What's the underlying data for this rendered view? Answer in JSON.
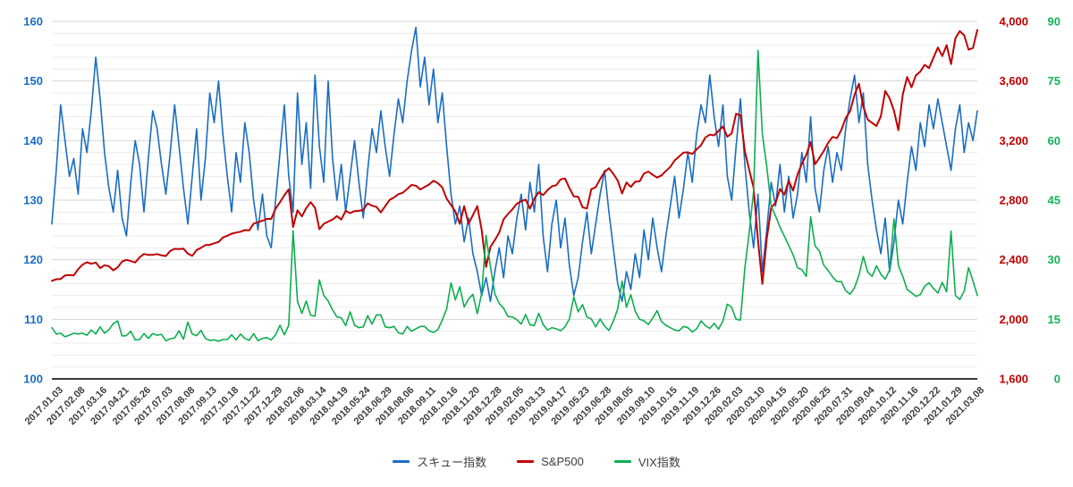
{
  "chart_data": {
    "type": "line",
    "title": "",
    "grid": true,
    "legend_position": "bottom",
    "x_labels": [
      "2017.01.03",
      "2017.02.08",
      "2017.03.16",
      "2017.04.21",
      "2017.05.26",
      "2017.07.03",
      "2017.08.08",
      "2017.09.13",
      "2017.10.18",
      "2017.11.22",
      "2017.12.29",
      "2018.02.06",
      "2018.03.14",
      "2018.04.19",
      "2018.05.24",
      "2018.06.29",
      "2018.08.06",
      "2018.09.11",
      "2018.10.16",
      "2018.11.20",
      "2018.12.28",
      "2019.02.05",
      "2019.03.13",
      "2019.04.17",
      "2019.05.23",
      "2019.06.28",
      "2019.08.05",
      "2019.09.10",
      "2019.10.15",
      "2019.11.19",
      "2019.12.26",
      "2020.02.03",
      "2020.03.10",
      "2020.04.15",
      "2020.05.20",
      "2020.06.25",
      "2020.07.31",
      "2020.09.04",
      "2020.10.12",
      "2020.11.16",
      "2020.12.22",
      "2021.01.29",
      "2021.03.08"
    ],
    "tick_every_samples": 5,
    "axes": {
      "left": {
        "min": 100,
        "max": 160,
        "step": 10,
        "minor_step": 2,
        "color": "#1a6dc2"
      },
      "right_sp500": {
        "min": 1600,
        "max": 4000,
        "step": 400,
        "color": "#c00000",
        "format": "comma"
      },
      "right_vix": {
        "min": 0,
        "max": 90,
        "step": 15,
        "color": "#12b35a"
      }
    },
    "series": [
      {
        "name": "スキュー指数",
        "axis": "left",
        "color": "#1a6dc2",
        "values": [
          126,
          135,
          146,
          140,
          134,
          137,
          131,
          142,
          138,
          145,
          154,
          147,
          138,
          132,
          128,
          135,
          127,
          124,
          133,
          140,
          136,
          128,
          137,
          145,
          142,
          136,
          131,
          138,
          146,
          139,
          132,
          126,
          134,
          142,
          130,
          137,
          148,
          143,
          150,
          141,
          134,
          128,
          138,
          133,
          143,
          138,
          130,
          125,
          131,
          124,
          122,
          130,
          138,
          146,
          134,
          128,
          148,
          136,
          143,
          132,
          151,
          139,
          133,
          150,
          137,
          130,
          136,
          128,
          134,
          140,
          133,
          127,
          135,
          142,
          138,
          145,
          139,
          134,
          141,
          147,
          143,
          150,
          155,
          159,
          149,
          154,
          146,
          152,
          143,
          148,
          139,
          131,
          126,
          129,
          123,
          127,
          121,
          118,
          114,
          117,
          113,
          118,
          122,
          117,
          124,
          121,
          127,
          131,
          125,
          133,
          128,
          136,
          124,
          118,
          126,
          130,
          122,
          127,
          119,
          114,
          117,
          123,
          128,
          121,
          126,
          131,
          135,
          128,
          122,
          116,
          113,
          118,
          115,
          121,
          117,
          125,
          120,
          127,
          122,
          118,
          124,
          129,
          134,
          127,
          132,
          138,
          133,
          141,
          146,
          143,
          151,
          144,
          139,
          146,
          134,
          130,
          139,
          147,
          136,
          128,
          122,
          131,
          118,
          125,
          133,
          129,
          136,
          128,
          134,
          127,
          131,
          138,
          133,
          144,
          132,
          128,
          135,
          139,
          133,
          138,
          135,
          142,
          147,
          151,
          143,
          148,
          136,
          130,
          125,
          121,
          127,
          118,
          123,
          130,
          126,
          133,
          139,
          135,
          143,
          139,
          146,
          142,
          147,
          143,
          139,
          135,
          142,
          146,
          138,
          143,
          140,
          145
        ]
      },
      {
        "name": "S&P500",
        "axis": "right_sp500",
        "color": "#c00000",
        "values": [
          2258,
          2269,
          2271,
          2294,
          2297,
          2295,
          2337,
          2367,
          2383,
          2373,
          2381,
          2344,
          2363,
          2356,
          2329,
          2349,
          2388,
          2399,
          2391,
          2382,
          2416,
          2439,
          2432,
          2433,
          2438,
          2429,
          2425,
          2459,
          2473,
          2472,
          2474,
          2441,
          2426,
          2465,
          2480,
          2498,
          2500,
          2510,
          2519,
          2549,
          2561,
          2575,
          2582,
          2588,
          2599,
          2597,
          2642,
          2652,
          2662,
          2674,
          2674,
          2743,
          2786,
          2833,
          2873,
          2620,
          2732,
          2691,
          2747,
          2787,
          2749,
          2605,
          2641,
          2656,
          2670,
          2693,
          2670,
          2728,
          2713,
          2727,
          2728,
          2735,
          2779,
          2762,
          2755,
          2718,
          2760,
          2801,
          2818,
          2840,
          2850,
          2875,
          2902,
          2897,
          2872,
          2888,
          2905,
          2930,
          2914,
          2886,
          2810,
          2768,
          2723,
          2641,
          2760,
          2642,
          2700,
          2760,
          2600,
          2351,
          2486,
          2532,
          2583,
          2671,
          2707,
          2738,
          2776,
          2793,
          2804,
          2743,
          2811,
          2854,
          2834,
          2867,
          2893,
          2900,
          2940,
          2946,
          2881,
          2826,
          2822,
          2752,
          2744,
          2873,
          2887,
          2942,
          2990,
          3014,
          2977,
          2932,
          2845,
          2919,
          2889,
          2924,
          2926,
          2979,
          2992,
          2970,
          2952,
          2966,
          2996,
          3023,
          3067,
          3093,
          3120,
          3121,
          3110,
          3141,
          3169,
          3221,
          3240,
          3235,
          3265,
          3295,
          3226,
          3249,
          3380,
          3370,
          3128,
          3003,
          2882,
          2529,
          2237,
          2541,
          2750,
          2783,
          2875,
          2837,
          2930,
          2864,
          2972,
          3044,
          3104,
          3190,
          3041,
          3084,
          3130,
          3185,
          3225,
          3216,
          3271,
          3351,
          3397,
          3508,
          3581,
          3427,
          3341,
          3319,
          3298,
          3363,
          3534,
          3484,
          3400,
          3270,
          3509,
          3627,
          3558,
          3638,
          3663,
          3709,
          3687,
          3756,
          3825,
          3768,
          3841,
          3714,
          3887,
          3935,
          3907,
          3811,
          3821,
          3943
        ]
      },
      {
        "name": "VIX指数",
        "axis": "right_vix",
        "color": "#0eae4f",
        "values": [
          12.9,
          11.3,
          11.5,
          10.6,
          11.0,
          11.5,
          11.3,
          11.5,
          11.0,
          12.3,
          11.3,
          13.1,
          11.5,
          12.4,
          13.9,
          14.6,
          10.8,
          10.9,
          12.0,
          9.8,
          9.9,
          11.4,
          10.2,
          11.4,
          11.0,
          11.2,
          9.6,
          10.1,
          10.3,
          12.1,
          10.0,
          14.3,
          11.3,
          10.9,
          12.2,
          10.2,
          9.7,
          9.8,
          9.5,
          9.9,
          9.9,
          11.1,
          9.8,
          11.3,
          10.2,
          9.7,
          11.4,
          9.6,
          10.2,
          10.4,
          9.8,
          11.1,
          13.5,
          11.1,
          13.5,
          37.3,
          19.5,
          16.5,
          19.6,
          16.0,
          15.8,
          24.9,
          21.0,
          19.6,
          17.4,
          15.6,
          15.4,
          13.4,
          16.9,
          13.5,
          12.9,
          13.1,
          15.9,
          13.8,
          16.1,
          16.1,
          13.1,
          12.9,
          13.2,
          11.6,
          11.3,
          13.2,
          12.0,
          12.6,
          13.2,
          13.2,
          12.1,
          11.7,
          12.4,
          14.8,
          17.6,
          24.2,
          19.9,
          23.2,
          18.1,
          20.1,
          21.3,
          16.4,
          21.5,
          36.1,
          28.3,
          21.4,
          19.0,
          17.8,
          15.7,
          15.6,
          14.9,
          13.8,
          16.2,
          13.6,
          13.4,
          16.5,
          13.7,
          12.3,
          12.9,
          12.6,
          12.1,
          13.1,
          15.1,
          20.6,
          16.9,
          18.7,
          15.6,
          15.1,
          13.1,
          15.1,
          13.3,
          12.2,
          14.5,
          17.6,
          24.6,
          18.0,
          21.2,
          17.0,
          15.0,
          14.6,
          13.7,
          15.3,
          17.2,
          14.4,
          13.5,
          12.9,
          12.3,
          12.1,
          13.2,
          12.9,
          11.8,
          12.6,
          14.6,
          13.4,
          12.7,
          14.0,
          12.5,
          14.6,
          18.8,
          18.0,
          15.0,
          14.8,
          27.9,
          36.8,
          47.3,
          82.7,
          61.6,
          53.5,
          43.4,
          41.0,
          38.2,
          35.9,
          33.6,
          31.2,
          28.0,
          27.5,
          25.8,
          40.8,
          33.5,
          32.2,
          28.6,
          27.3,
          25.7,
          24.5,
          24.5,
          22.2,
          21.3,
          23.0,
          26.1,
          30.8,
          26.9,
          25.8,
          28.5,
          26.4,
          25.1,
          27.4,
          40.3,
          28.6,
          25.8,
          22.5,
          21.7,
          20.8,
          21.2,
          23.3,
          24.2,
          22.8,
          21.6,
          24.3,
          21.9,
          37.2,
          21.0,
          20.0,
          22.1,
          28.0,
          24.7,
          21.0
        ]
      }
    ],
    "style": {
      "grid_minor_color": "#ececec",
      "grid_major_color": "#d6d6d6",
      "axis_line_color": "#3c3c3c",
      "background": "#ffffff"
    }
  },
  "legend": {
    "items": [
      {
        "label": "スキュー指数"
      },
      {
        "label": "S&P500"
      },
      {
        "label": "VIX指数"
      }
    ]
  }
}
